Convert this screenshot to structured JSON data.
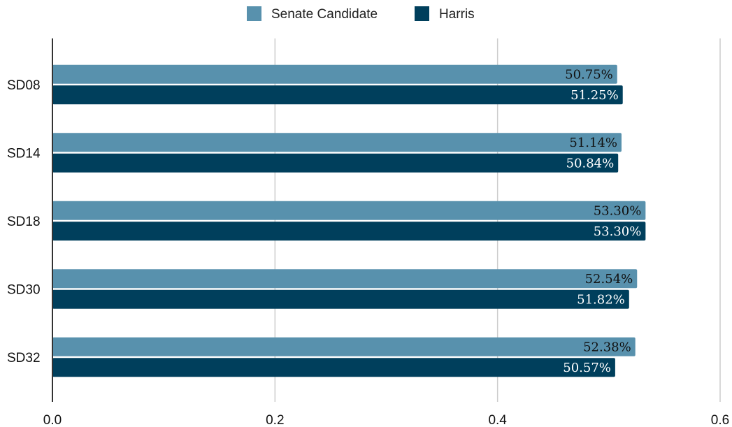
{
  "chart_data": {
    "type": "bar",
    "orientation": "horizontal",
    "categories": [
      "SD08",
      "SD14",
      "SD18",
      "SD30",
      "SD32"
    ],
    "series": [
      {
        "name": "Senate Candidate",
        "color": "#5891ad",
        "values": [
          0.5075,
          0.5114,
          0.533,
          0.5254,
          0.5238
        ],
        "labels": [
          "50.75%",
          "51.14%",
          "53.30%",
          "52.54%",
          "52.38%"
        ]
      },
      {
        "name": "Harris",
        "color": "#003f5c",
        "values": [
          0.5125,
          0.5084,
          0.533,
          0.5182,
          0.5057
        ],
        "labels": [
          "51.25%",
          "50.84%",
          "53.30%",
          "51.82%",
          "50.57%"
        ]
      }
    ],
    "xlim": [
      0,
      0.6
    ],
    "xticks": [
      "0.0",
      "0.2",
      "0.4",
      "0.6"
    ],
    "grid": "vertical",
    "legend": "top-center",
    "label_colors": {
      "Senate Candidate": "#111111",
      "Harris": "#ffffff"
    },
    "gridline_color": "#cccccc",
    "axis_color": "#333333"
  }
}
